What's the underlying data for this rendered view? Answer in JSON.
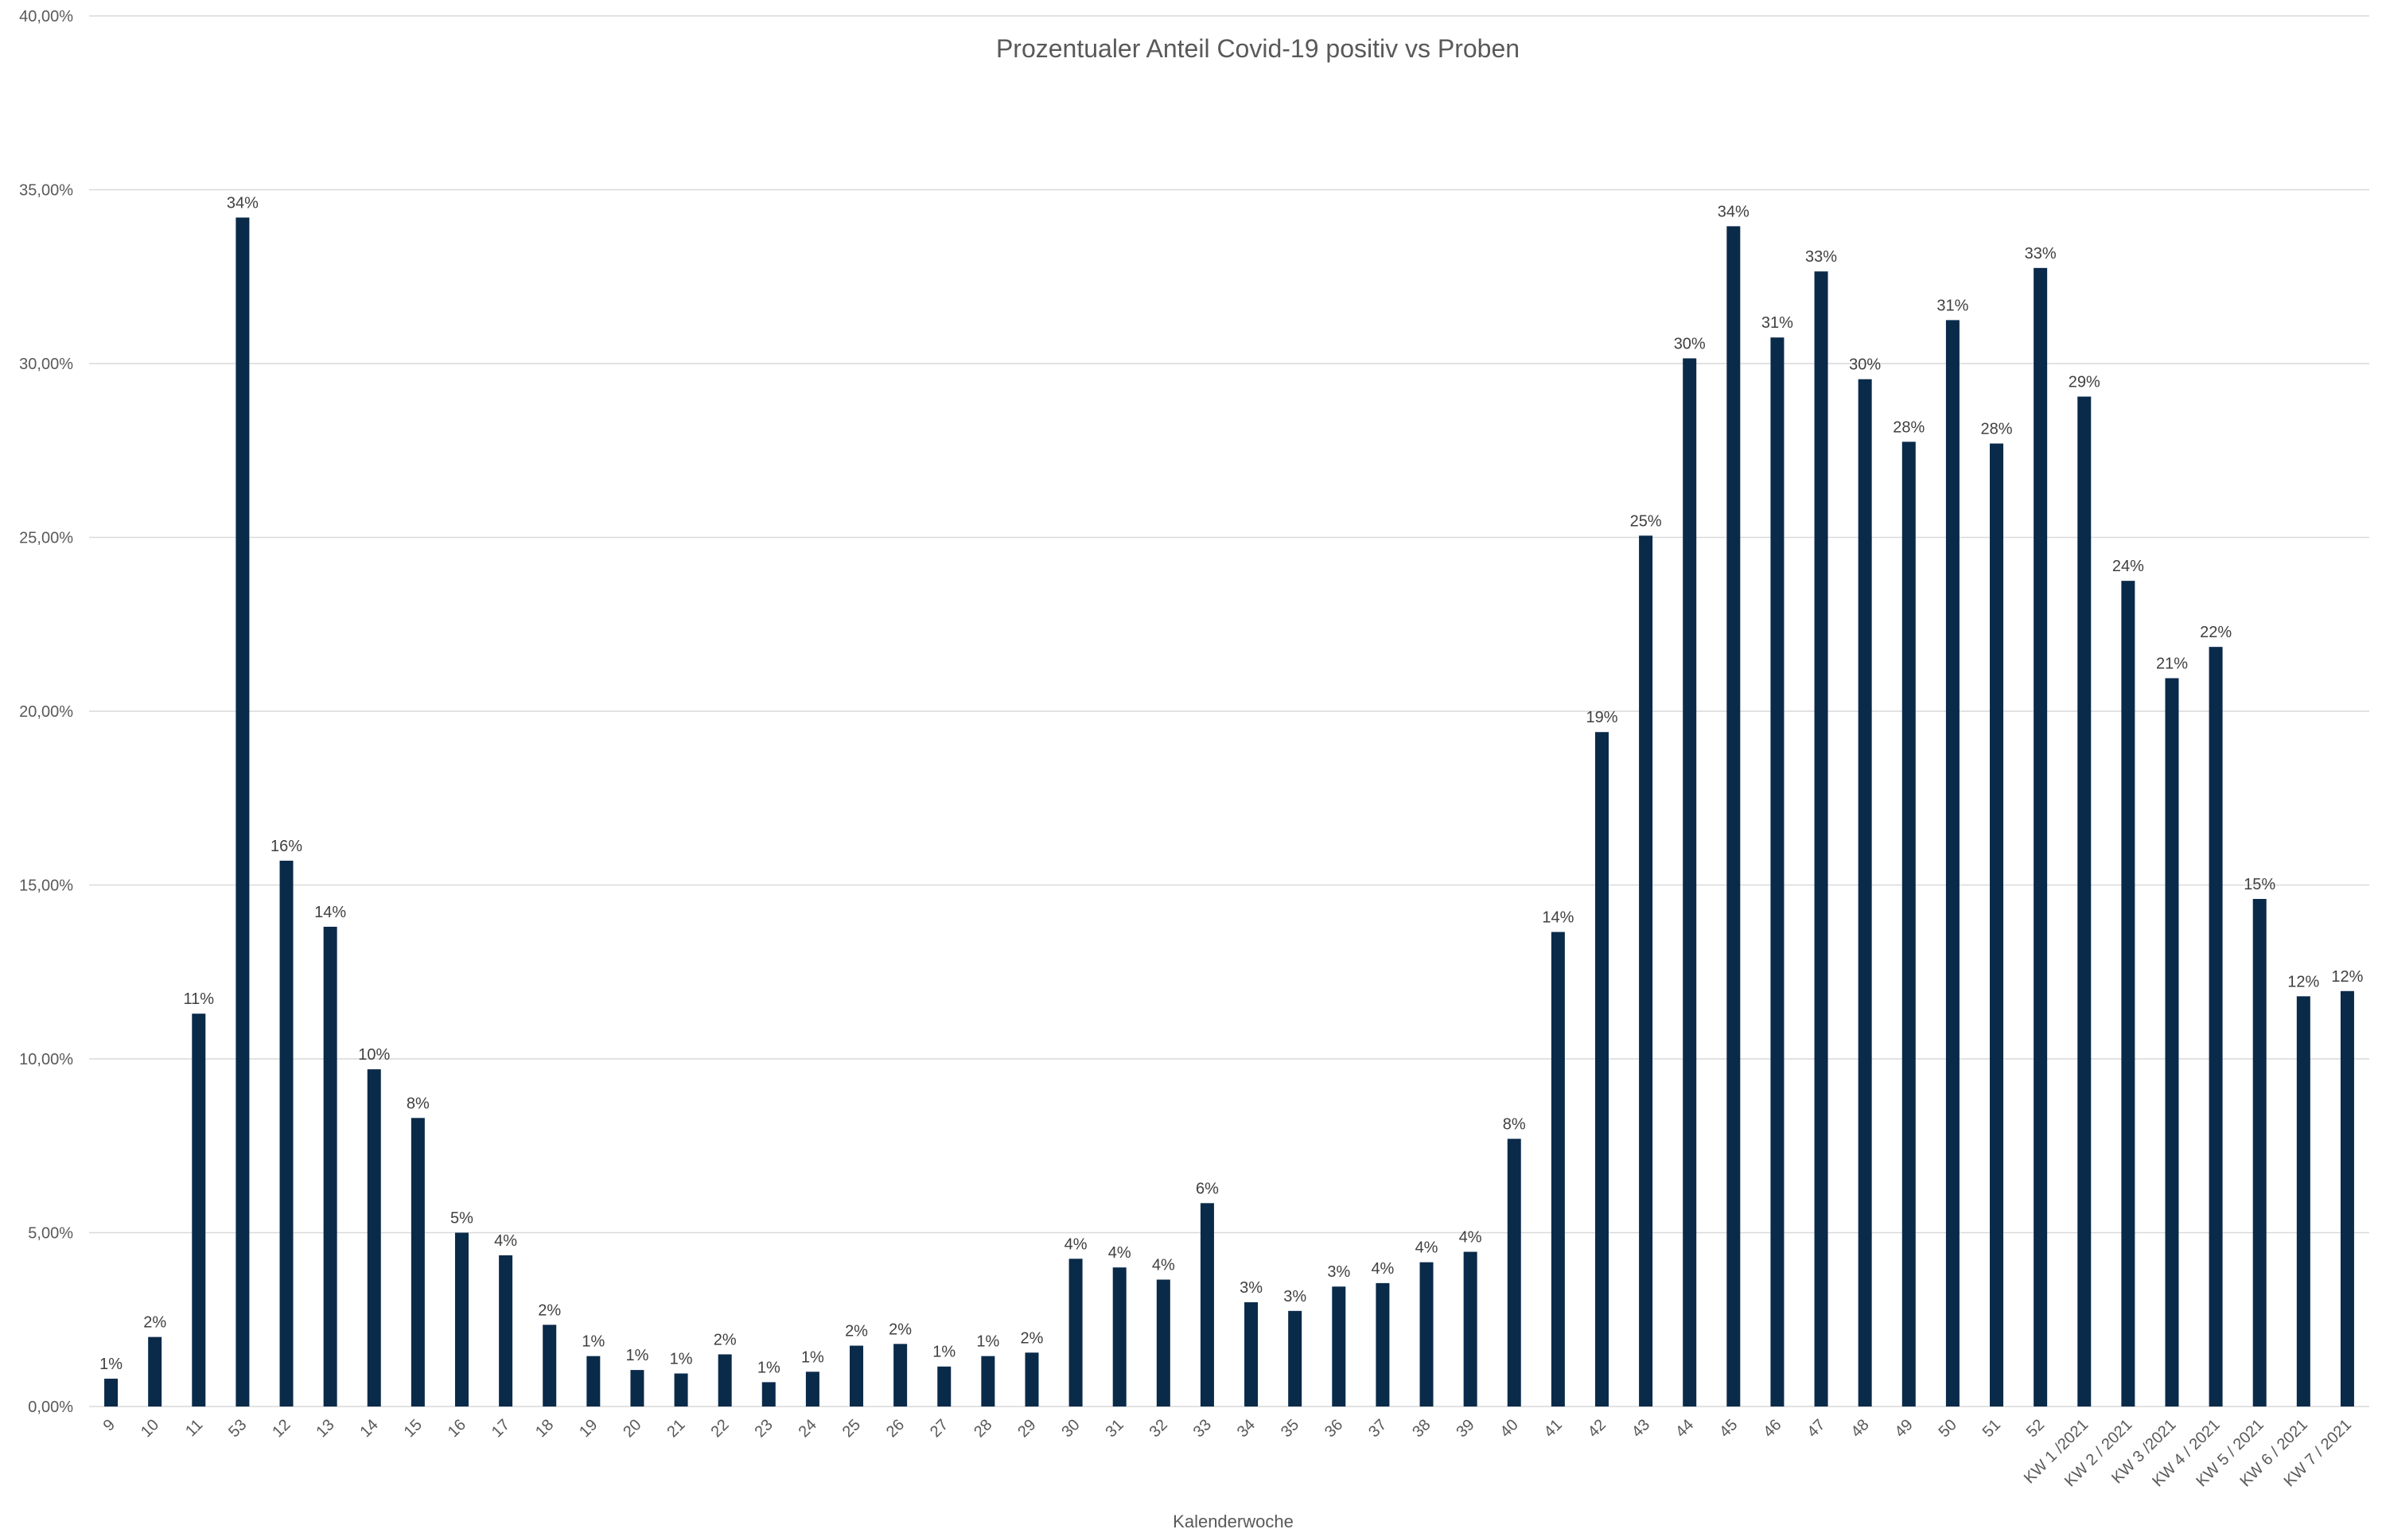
{
  "chart_data": {
    "type": "bar",
    "title": "Prozentualer Anteil Covid-19 positiv vs Proben",
    "xlabel": "Kalenderwoche",
    "ylabel": "",
    "ylim": [
      0,
      40
    ],
    "y_ticks": [
      "0,00%",
      "5,00%",
      "10,00%",
      "15,00%",
      "20,00%",
      "25,00%",
      "30,00%",
      "35,00%",
      "40,00%"
    ],
    "grid": true,
    "legend": "none",
    "bar_color": "#0a2a4a",
    "categories": [
      "9",
      "10",
      "11",
      "53",
      "12",
      "13",
      "14",
      "15",
      "16",
      "17",
      "18",
      "19",
      "20",
      "21",
      "22",
      "23",
      "24",
      "25",
      "26",
      "27",
      "28",
      "29",
      "30",
      "31",
      "32",
      "33",
      "34",
      "35",
      "36",
      "37",
      "38",
      "39",
      "40",
      "41",
      "42",
      "43",
      "44",
      "45",
      "46",
      "47",
      "48",
      "49",
      "50",
      "51",
      "52",
      "KW 1 /2021",
      "KW 2 / 2021",
      "KW 3 /2021",
      "KW 4 / 2021",
      "KW 5 / 2021",
      "KW 6 / 2021",
      "KW 7 / 2021"
    ],
    "values": [
      0.8,
      2.0,
      11.3,
      34.2,
      15.7,
      13.8,
      9.7,
      8.3,
      5.0,
      4.35,
      2.35,
      1.45,
      1.05,
      0.95,
      1.5,
      0.7,
      1.0,
      1.75,
      1.8,
      1.15,
      1.45,
      1.55,
      4.25,
      4.0,
      3.65,
      5.85,
      3.0,
      2.75,
      3.45,
      3.55,
      4.15,
      4.45,
      7.7,
      13.65,
      19.4,
      25.05,
      30.15,
      33.95,
      30.75,
      32.65,
      29.55,
      27.75,
      31.25,
      27.7,
      32.75,
      29.05,
      23.75,
      20.95,
      21.85,
      14.6,
      11.8,
      11.95
    ],
    "data_labels": [
      "1%",
      "2%",
      "11%",
      "34%",
      "16%",
      "14%",
      "10%",
      "8%",
      "5%",
      "4%",
      "2%",
      "1%",
      "1%",
      "1%",
      "2%",
      "1%",
      "1%",
      "2%",
      "2%",
      "1%",
      "1%",
      "2%",
      "4%",
      "4%",
      "4%",
      "6%",
      "3%",
      "3%",
      "3%",
      "4%",
      "4%",
      "4%",
      "8%",
      "14%",
      "19%",
      "25%",
      "30%",
      "34%",
      "31%",
      "33%",
      "30%",
      "28%",
      "31%",
      "28%",
      "33%",
      "29%",
      "24%",
      "21%",
      "22%",
      "15%",
      "12%",
      "12%"
    ]
  }
}
